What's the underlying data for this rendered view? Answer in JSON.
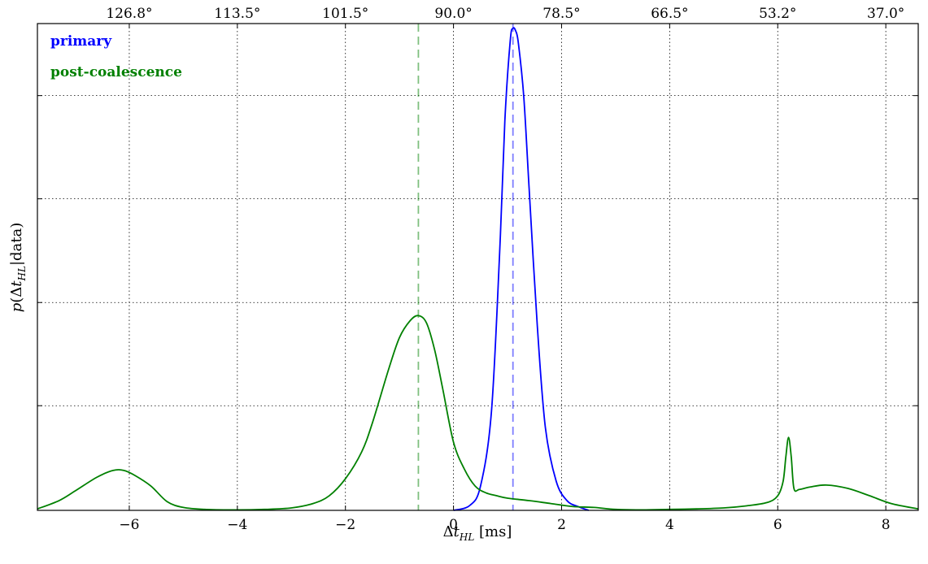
{
  "chart_data": {
    "type": "line",
    "xlabel": "Δt_HL [ms]",
    "ylabel": "p(Δt_HL|data)",
    "xlim": [
      -7.7,
      8.6
    ],
    "ylim": [
      0,
      1.0
    ],
    "x_ticks": [
      -6,
      -4,
      -2,
      0,
      2,
      4,
      6,
      8
    ],
    "x_tick_labels": [
      "−6",
      "−4",
      "−2",
      "0",
      "2",
      "4",
      "6",
      "8"
    ],
    "top_axis": {
      "tick_positions": [
        -6.0,
        -4.0,
        -2.0,
        -0.0,
        2.0,
        4.0,
        6.0,
        8.0
      ],
      "tick_labels": [
        "126.8°",
        "113.5°",
        "101.5°",
        "90.0°",
        "78.5°",
        "66.5°",
        "53.2°",
        "37.0°"
      ]
    },
    "y_gridlines": [
      0.215,
      0.427,
      0.64,
      0.852
    ],
    "grid": true,
    "legend": {
      "placement": "top-left",
      "entries": [
        {
          "label": "primary",
          "color": "#0000ff"
        },
        {
          "label": "post-coalescence",
          "color": "#008000"
        }
      ]
    },
    "series": [
      {
        "name": "primary",
        "color": "#0000ff",
        "x": [
          0.0,
          0.3,
          0.5,
          0.7,
          0.85,
          0.95,
          1.05,
          1.1,
          1.15,
          1.2,
          1.3,
          1.4,
          1.55,
          1.7,
          1.9,
          2.1,
          2.3,
          2.5
        ],
        "y": [
          0.0,
          0.01,
          0.05,
          0.2,
          0.52,
          0.8,
          0.965,
          0.99,
          0.985,
          0.96,
          0.85,
          0.66,
          0.38,
          0.17,
          0.06,
          0.02,
          0.008,
          0.0
        ],
        "peak_marker_x": 1.1
      },
      {
        "name": "post-coalescence",
        "color": "#008000",
        "x": [
          -7.7,
          -7.3,
          -7.0,
          -6.6,
          -6.3,
          -6.1,
          -5.9,
          -5.6,
          -5.3,
          -5.0,
          -4.6,
          -4.0,
          -3.5,
          -3.0,
          -2.6,
          -2.3,
          -2.0,
          -1.7,
          -1.5,
          -1.2,
          -1.0,
          -0.8,
          -0.65,
          -0.5,
          -0.35,
          -0.2,
          0.0,
          0.2,
          0.4,
          0.6,
          0.8,
          1.0,
          1.4,
          1.8,
          2.2,
          2.6,
          3.0,
          3.5,
          4.0,
          4.5,
          5.0,
          5.4,
          5.8,
          6.0,
          6.1,
          6.15,
          6.2,
          6.25,
          6.3,
          6.4,
          6.6,
          6.9,
          7.3,
          7.7,
          8.1,
          8.6
        ],
        "y": [
          0.003,
          0.02,
          0.04,
          0.068,
          0.082,
          0.082,
          0.072,
          0.05,
          0.018,
          0.006,
          0.002,
          0.001,
          0.002,
          0.005,
          0.014,
          0.03,
          0.065,
          0.12,
          0.18,
          0.29,
          0.355,
          0.39,
          0.4,
          0.385,
          0.33,
          0.25,
          0.14,
          0.085,
          0.05,
          0.036,
          0.03,
          0.025,
          0.02,
          0.014,
          0.008,
          0.006,
          0.002,
          0.001,
          0.002,
          0.003,
          0.005,
          0.009,
          0.016,
          0.03,
          0.06,
          0.11,
          0.15,
          0.11,
          0.045,
          0.043,
          0.048,
          0.052,
          0.045,
          0.03,
          0.014,
          0.003
        ],
        "peak_marker_x": -0.65
      }
    ]
  }
}
